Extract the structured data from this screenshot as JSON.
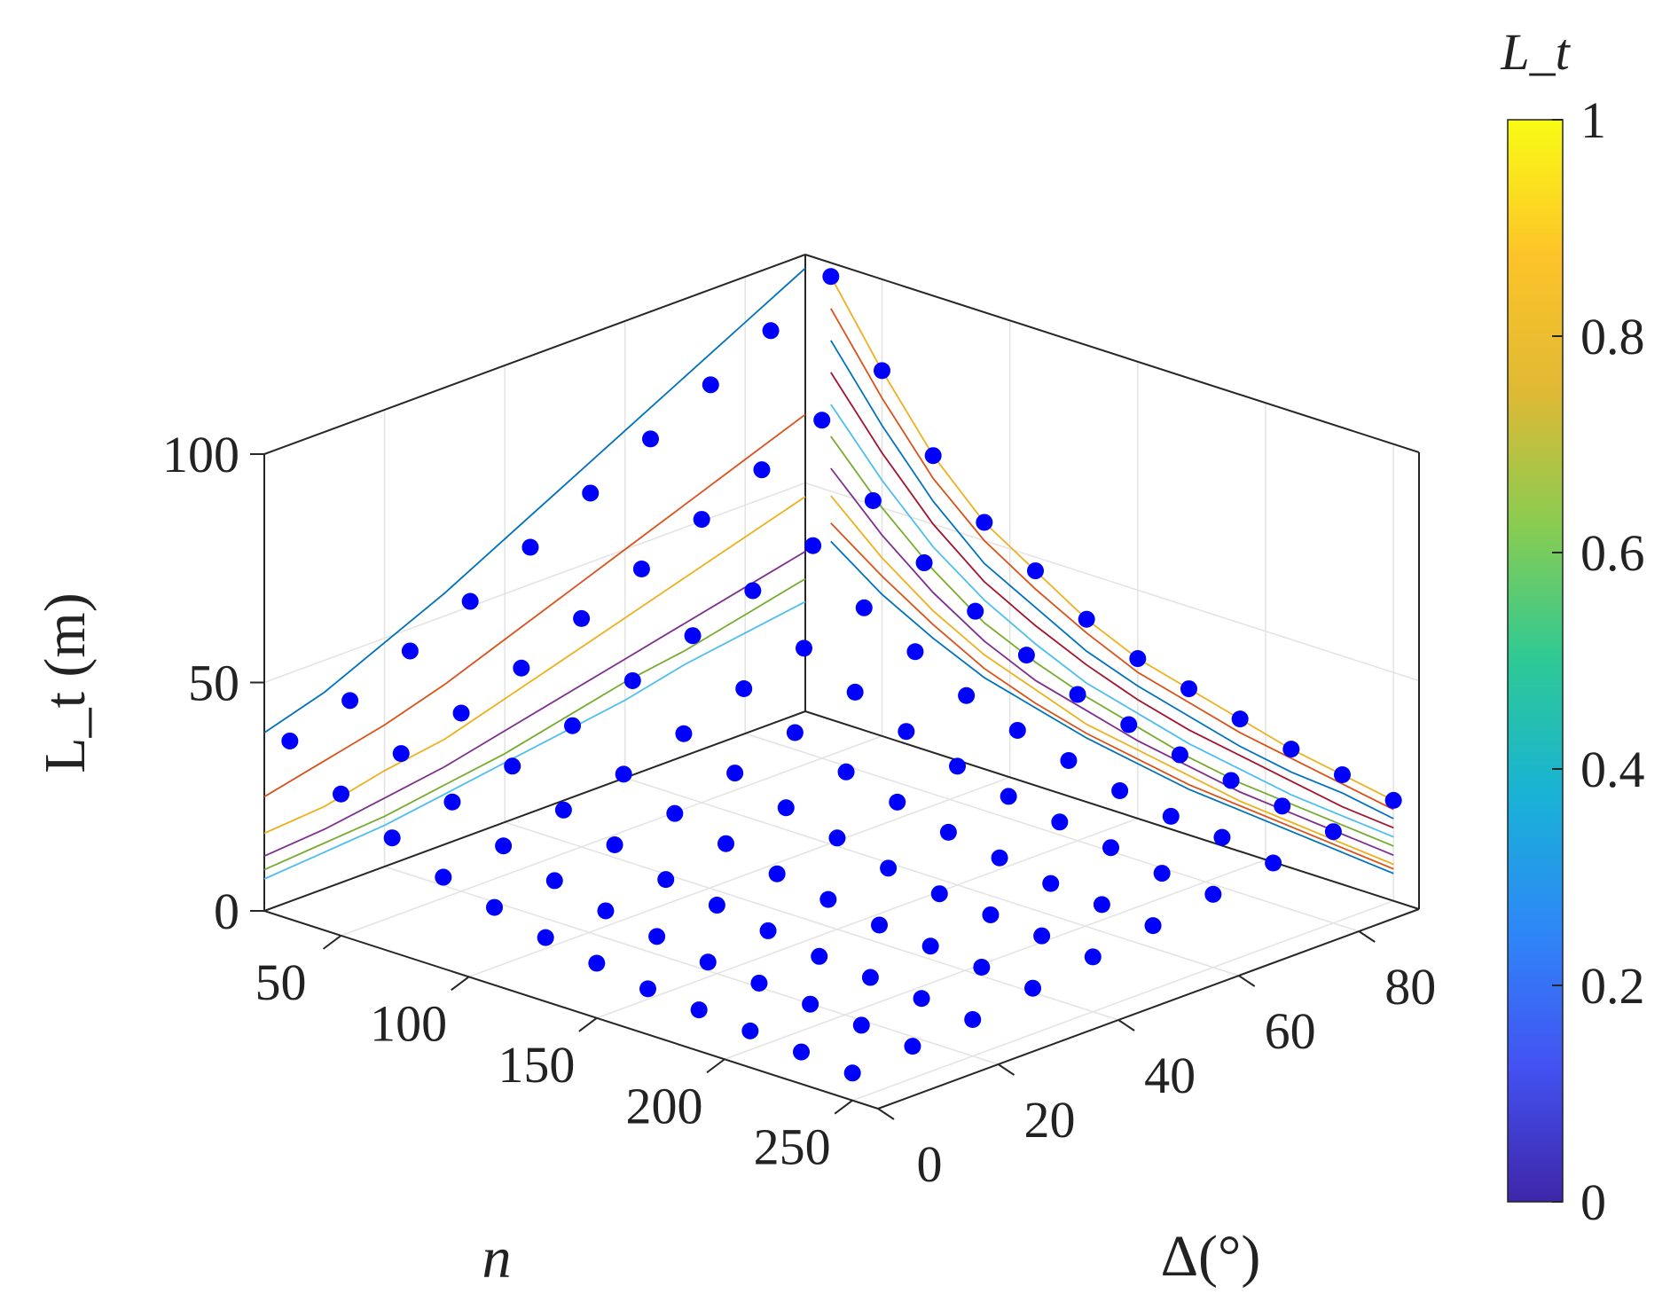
{
  "chart_data": {
    "type": "scatter",
    "subtype": "3d-scatter-with-projected-lines",
    "title": "",
    "xlabel": "n",
    "ylabel": "Δ(°)",
    "zlabel": "L_t  (m)",
    "colorbar_label": "L_t",
    "xlim": [
      20,
      260
    ],
    "ylim": [
      0,
      90
    ],
    "zlim": [
      0,
      100
    ],
    "x_ticks": [
      50,
      100,
      150,
      200,
      250
    ],
    "y_ticks": [
      0,
      20,
      40,
      60,
      80
    ],
    "z_ticks": [
      0,
      50,
      100
    ],
    "colorbar_ticks": [
      0,
      0.2,
      0.4,
      0.6,
      0.8,
      1
    ],
    "colorbar_colors": [
      "#3e26a8",
      "#4352f2",
      "#2e87f7",
      "#19b2d6",
      "#2ec995",
      "#89cc51",
      "#e0b934",
      "#fdc429",
      "#f9fb15"
    ],
    "grid": true,
    "marker_color": "#0000ff",
    "n_values": [
      30,
      50,
      70,
      90,
      110,
      130,
      150,
      170,
      190,
      210,
      230,
      250
    ],
    "delta_values": [
      0,
      10,
      20,
      30,
      40,
      50,
      60,
      70,
      80,
      90
    ],
    "scatter_series": [
      {
        "delta": 0,
        "values": [
          39,
          31,
          25,
          20,
          17,
          14,
          12,
          10,
          9,
          8,
          7,
          6
        ]
      },
      {
        "delta": 10,
        "values": [
          43,
          35,
          28,
          22,
          18,
          15,
          13,
          11,
          10,
          9,
          8,
          7
        ]
      },
      {
        "delta": 20,
        "values": [
          49,
          39,
          31,
          25,
          21,
          17,
          15,
          13,
          11,
          10,
          9,
          8
        ]
      },
      {
        "delta": 30,
        "values": [
          55,
          44,
          35,
          28,
          23,
          20,
          17,
          15,
          13,
          12,
          11,
          10
        ]
      },
      {
        "delta": 40,
        "values": [
          62,
          50,
          40,
          32,
          27,
          23,
          20,
          17,
          15,
          14,
          13,
          12
        ]
      },
      {
        "delta": 50,
        "values": [
          69,
          56,
          45,
          37,
          31,
          26,
          23,
          20,
          18,
          16,
          15,
          14
        ]
      },
      {
        "delta": 60,
        "values": [
          76,
          62,
          50,
          41,
          35,
          30,
          26,
          23,
          21,
          19,
          17,
          16
        ]
      },
      {
        "delta": 70,
        "values": [
          83,
          68,
          55,
          45,
          39,
          33,
          29,
          26,
          23,
          21,
          20,
          18
        ]
      },
      {
        "delta": 80,
        "values": [
          90,
          74,
          60,
          50,
          43,
          37,
          32,
          29,
          26,
          24,
          22,
          20
        ]
      },
      {
        "delta": 90,
        "values": [
          97,
          80,
          65,
          54,
          47,
          40,
          35,
          32,
          29,
          26,
          24,
          22
        ]
      }
    ],
    "projected_lines_color_order": [
      "#0072bd",
      "#d95319",
      "#edb120",
      "#7e2f8e",
      "#77ac30",
      "#4dbeee",
      "#a2142f"
    ]
  }
}
